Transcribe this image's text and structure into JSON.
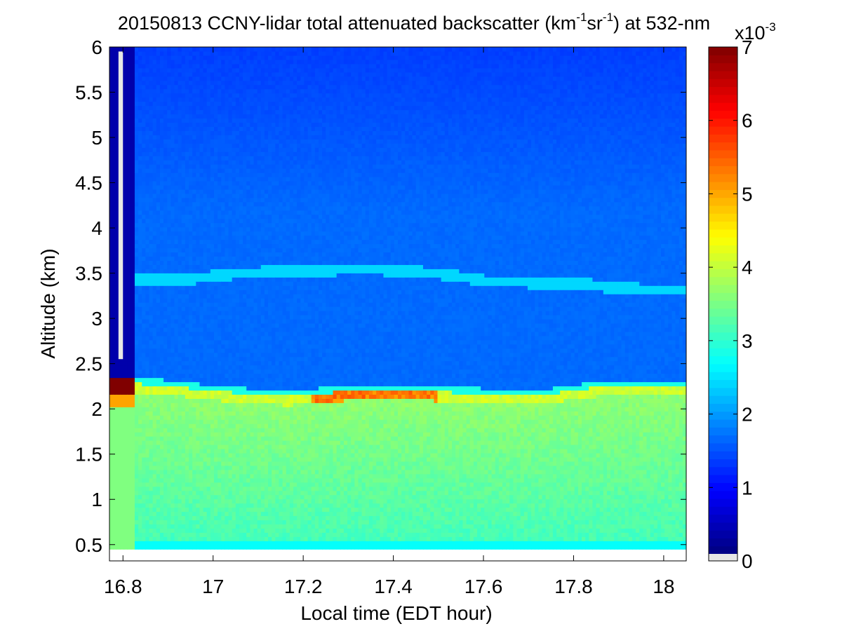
{
  "chart_data": {
    "type": "heatmap",
    "title_main": "20150813 CCNY-lidar total attenuated backscatter (km",
    "title_sup1": "-1",
    "title_mid": "sr",
    "title_sup2": "-1",
    "title_end": ") at 532-nm",
    "xlabel": "Local time (EDT hour)",
    "ylabel": "Altitude (km)",
    "xlim": [
      16.77,
      18.05
    ],
    "ylim": [
      0.32,
      6.0
    ],
    "data_xlim": [
      16.77,
      18.05
    ],
    "data_ylim": [
      0.45,
      6.0
    ],
    "xticks": [
      16.8,
      17,
      17.2,
      17.4,
      17.6,
      17.8,
      18
    ],
    "xtick_labels": [
      "16.8",
      "17",
      "17.2",
      "17.4",
      "17.6",
      "17.8",
      "18"
    ],
    "yticks": [
      0.5,
      1,
      1.5,
      2,
      2.5,
      3,
      3.5,
      4,
      4.5,
      5,
      5.5,
      6
    ],
    "ytick_labels": [
      "0.5",
      "1",
      "1.5",
      "2",
      "2.5",
      "3",
      "3.5",
      "4",
      "4.5",
      "5",
      "5.5",
      "6"
    ],
    "colorbar": {
      "range": [
        0,
        7
      ],
      "ticks": [
        0,
        1,
        2,
        3,
        4,
        5,
        6,
        7
      ],
      "tick_labels": [
        "0",
        "1",
        "2",
        "3",
        "4",
        "5",
        "6",
        "7"
      ],
      "multiplier_base": "x10",
      "multiplier_exp": "-3",
      "colormap": "jet",
      "no_data_color": "#e6e6e6"
    },
    "features": {
      "boundary_layer_top_km": [
        [
          16.83,
          2.28
        ],
        [
          16.9,
          2.26
        ],
        [
          17.0,
          2.2
        ],
        [
          17.1,
          2.16
        ],
        [
          17.17,
          2.14
        ],
        [
          17.25,
          2.18
        ],
        [
          17.35,
          2.21
        ],
        [
          17.45,
          2.2
        ],
        [
          17.55,
          2.18
        ],
        [
          17.65,
          2.16
        ],
        [
          17.75,
          2.17
        ],
        [
          17.85,
          2.24
        ],
        [
          17.95,
          2.25
        ],
        [
          18.05,
          2.24
        ]
      ],
      "boundary_layer_backscatter": 3.6,
      "surface_layer_backscatter": 3.1,
      "free_troposphere_backscatter": 1.6,
      "upper_backscatter": 1.3,
      "aerosol_layer_km": [
        [
          16.83,
          3.43
        ],
        [
          16.95,
          3.44
        ],
        [
          17.05,
          3.5
        ],
        [
          17.2,
          3.53
        ],
        [
          17.35,
          3.55
        ],
        [
          17.5,
          3.5
        ],
        [
          17.6,
          3.42
        ],
        [
          17.7,
          3.4
        ],
        [
          17.8,
          3.4
        ],
        [
          17.9,
          3.33
        ],
        [
          18.05,
          3.32
        ]
      ],
      "aerosol_layer_backscatter": 2.35,
      "enhanced_top_backscatter": 5.6,
      "low_signal_profile_time": [
        16.77,
        16.83
      ],
      "low_signal_profile_backscatter": 0.3,
      "saturated_band_km": [
        2.17,
        2.33
      ]
    }
  }
}
